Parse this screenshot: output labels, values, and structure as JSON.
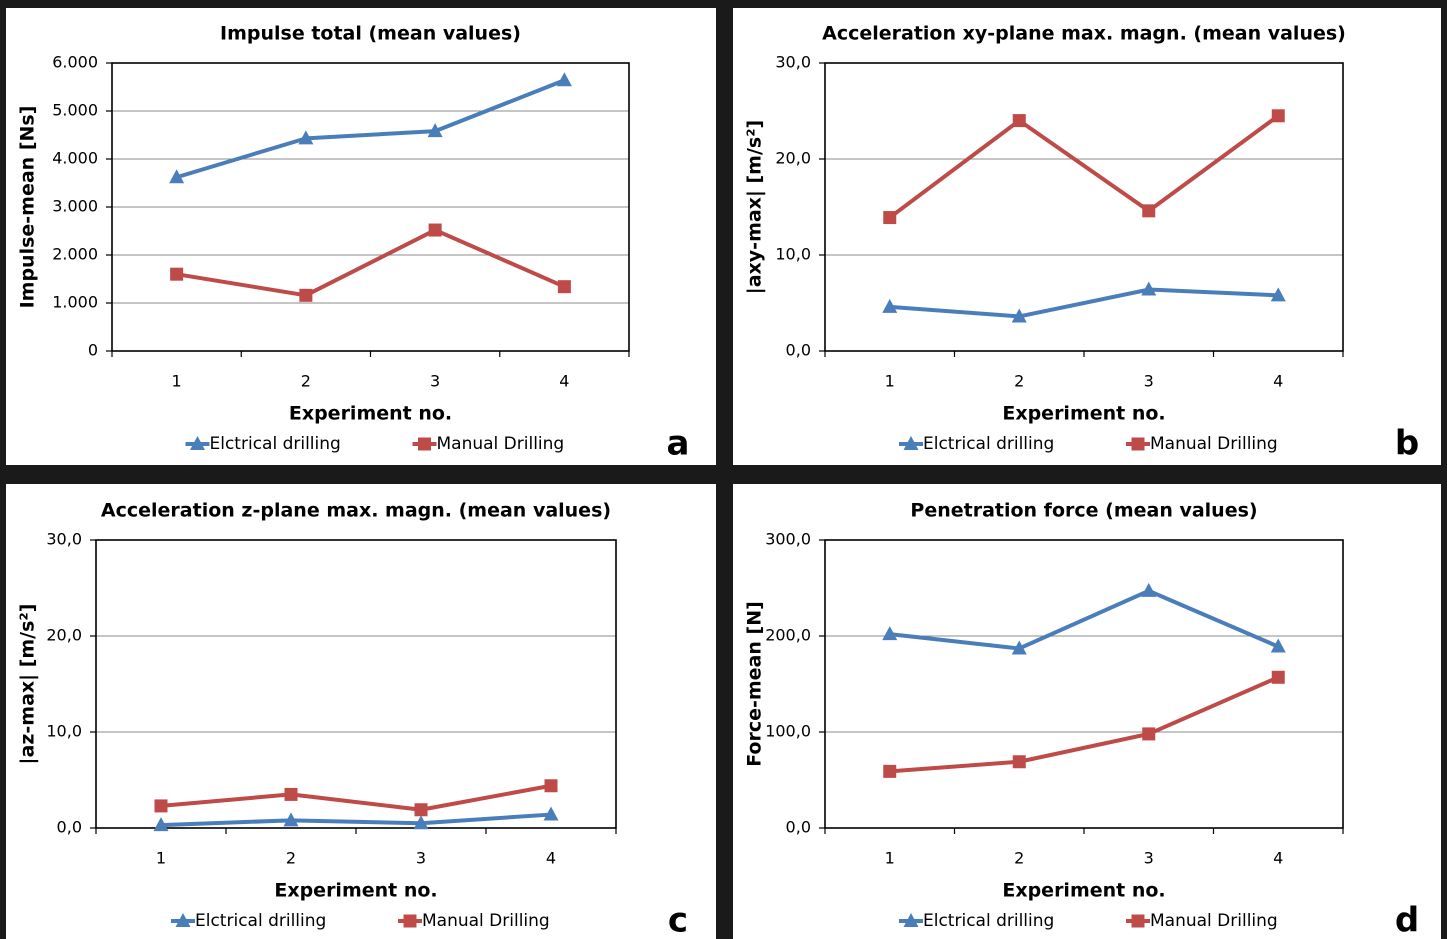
{
  "legend_labels": [
    "Elctrical drilling",
    "Manual Drilling"
  ],
  "series_colors": [
    "#4a7ebb",
    "#be4b48"
  ],
  "chart_data": [
    {
      "panel": "a",
      "type": "line",
      "title": "Impulse total (mean values)",
      "xlabel": "Experiment no.",
      "ylabel": "Impulse-mean [Ns]",
      "categories": [
        "1",
        "2",
        "3",
        "4"
      ],
      "ylim": [
        0,
        6000
      ],
      "yticks": [
        0,
        1000,
        2000,
        3000,
        4000,
        5000,
        6000
      ],
      "ytick_labels": [
        "0",
        "1.000",
        "2.000",
        "3.000",
        "4.000",
        "5.000",
        "6.000"
      ],
      "grid": true,
      "legend": "bottom",
      "series": [
        {
          "name": "Elctrical drilling",
          "marker": "triangle",
          "values": [
            3620,
            4430,
            4580,
            5640
          ]
        },
        {
          "name": "Manual Drilling",
          "marker": "square",
          "values": [
            1600,
            1160,
            2520,
            1340
          ]
        }
      ]
    },
    {
      "panel": "b",
      "type": "line",
      "title": "Acceleration xy-plane max. magn. (mean values)",
      "xlabel": "Experiment no.",
      "ylabel": "|axy-max| [m/s²]",
      "categories": [
        "1",
        "2",
        "3",
        "4"
      ],
      "ylim": [
        0,
        30
      ],
      "yticks": [
        0,
        10,
        20,
        30
      ],
      "ytick_labels": [
        "0,0",
        "10,0",
        "20,0",
        "30,0"
      ],
      "grid": true,
      "legend": "bottom",
      "series": [
        {
          "name": "Elctrical drilling",
          "marker": "triangle",
          "values": [
            4.6,
            3.6,
            6.4,
            5.8
          ]
        },
        {
          "name": "Manual Drilling",
          "marker": "square",
          "values": [
            13.9,
            24.0,
            14.6,
            24.5
          ]
        }
      ]
    },
    {
      "panel": "c",
      "type": "line",
      "title": "Acceleration z-plane max. magn. (mean values)",
      "xlabel": "Experiment no.",
      "ylabel": "|az-max| [m/s²]",
      "categories": [
        "1",
        "2",
        "3",
        "4"
      ],
      "ylim": [
        0,
        30
      ],
      "yticks": [
        0,
        10,
        20,
        30
      ],
      "ytick_labels": [
        "0,0",
        "10,0",
        "20,0",
        "30,0"
      ],
      "grid": true,
      "legend": "bottom",
      "series": [
        {
          "name": "Elctrical drilling",
          "marker": "triangle",
          "values": [
            0.3,
            0.8,
            0.5,
            1.4
          ]
        },
        {
          "name": "Manual Drilling",
          "marker": "square",
          "values": [
            2.3,
            3.5,
            1.9,
            4.4
          ]
        }
      ]
    },
    {
      "panel": "d",
      "type": "line",
      "title": "Penetration force (mean values)",
      "xlabel": "Experiment no.",
      "ylabel": "Force-mean [N]",
      "categories": [
        "1",
        "2",
        "3",
        "4"
      ],
      "ylim": [
        0,
        300
      ],
      "yticks": [
        0,
        100,
        200,
        300
      ],
      "ytick_labels": [
        "0,0",
        "100,0",
        "200,0",
        "300,0"
      ],
      "grid": true,
      "legend": "bottom",
      "series": [
        {
          "name": "Elctrical drilling",
          "marker": "triangle",
          "values": [
            202,
            187,
            247,
            189
          ]
        },
        {
          "name": "Manual Drilling",
          "marker": "square",
          "values": [
            59,
            69,
            98,
            157
          ]
        }
      ]
    }
  ]
}
